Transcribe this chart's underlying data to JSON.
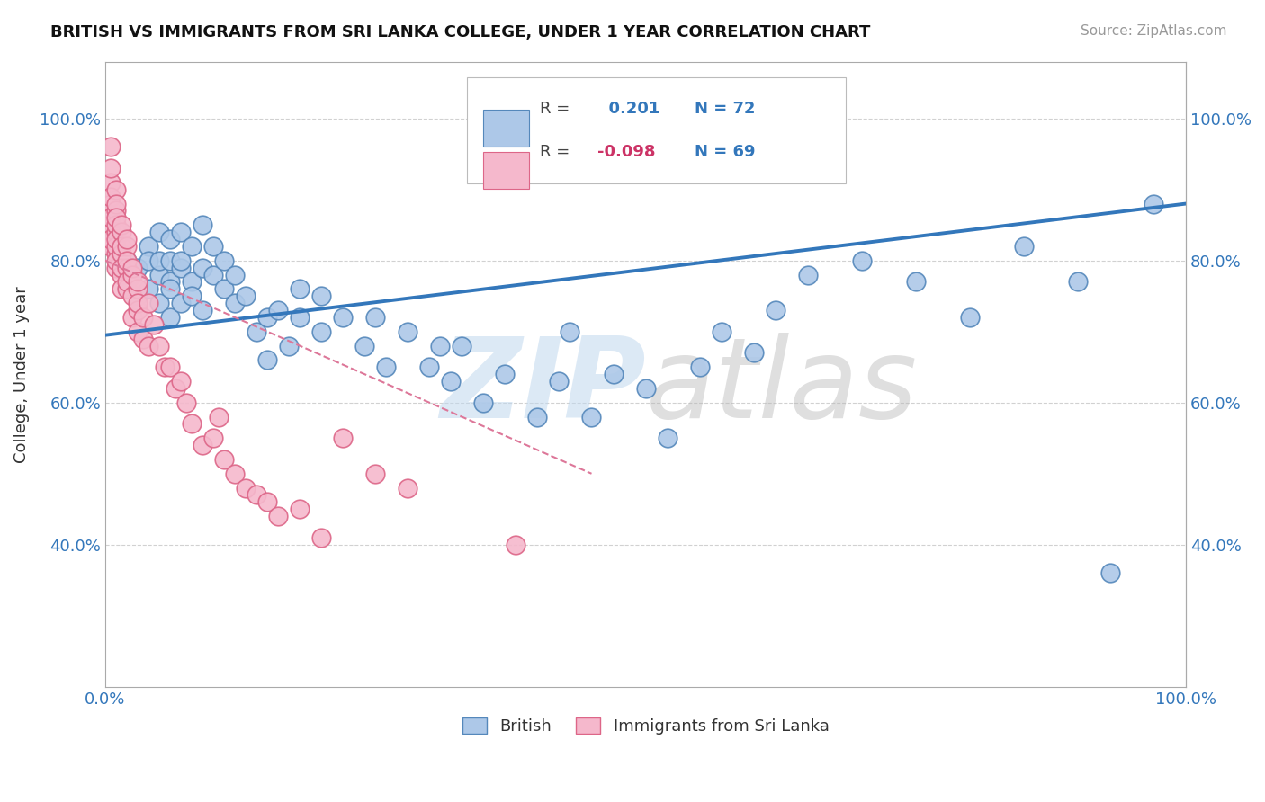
{
  "title": "BRITISH VS IMMIGRANTS FROM SRI LANKA COLLEGE, UNDER 1 YEAR CORRELATION CHART",
  "source": "Source: ZipAtlas.com",
  "ylabel": "College, Under 1 year",
  "xmin": 0.0,
  "xmax": 1.0,
  "ymin": 0.2,
  "ymax": 1.08,
  "yticks": [
    0.4,
    0.6,
    0.8,
    1.0
  ],
  "ytick_labels": [
    "40.0%",
    "60.0%",
    "80.0%",
    "100.0%"
  ],
  "grid_color": "#cccccc",
  "background_color": "#ffffff",
  "british_color": "#adc8e8",
  "british_edge_color": "#5588bb",
  "british_R": 0.201,
  "british_N": 72,
  "srilanka_color": "#f5b8cc",
  "srilanka_edge_color": "#dd6688",
  "srilanka_R": -0.098,
  "srilanka_N": 69,
  "blue_line_color": "#3377bb",
  "pink_line_color": "#dd7799",
  "watermark": "ZIPatlas",
  "watermark_blue": "#c0d8ee",
  "watermark_gray": "#b8b8b8",
  "legend_british_label": "British",
  "legend_srilanka_label": "Immigrants from Sri Lanka",
  "british_x": [
    0.02,
    0.02,
    0.03,
    0.03,
    0.04,
    0.04,
    0.04,
    0.05,
    0.05,
    0.05,
    0.05,
    0.06,
    0.06,
    0.06,
    0.06,
    0.06,
    0.07,
    0.07,
    0.07,
    0.07,
    0.08,
    0.08,
    0.08,
    0.09,
    0.09,
    0.09,
    0.1,
    0.1,
    0.11,
    0.11,
    0.12,
    0.12,
    0.13,
    0.14,
    0.15,
    0.15,
    0.16,
    0.17,
    0.18,
    0.18,
    0.2,
    0.2,
    0.22,
    0.24,
    0.25,
    0.26,
    0.28,
    0.3,
    0.31,
    0.32,
    0.33,
    0.35,
    0.37,
    0.4,
    0.42,
    0.43,
    0.45,
    0.47,
    0.5,
    0.52,
    0.55,
    0.57,
    0.6,
    0.62,
    0.65,
    0.7,
    0.75,
    0.8,
    0.85,
    0.9,
    0.93,
    0.97
  ],
  "british_y": [
    0.76,
    0.8,
    0.75,
    0.79,
    0.82,
    0.76,
    0.8,
    0.78,
    0.74,
    0.8,
    0.84,
    0.77,
    0.8,
    0.83,
    0.76,
    0.72,
    0.79,
    0.74,
    0.8,
    0.84,
    0.77,
    0.82,
    0.75,
    0.79,
    0.73,
    0.85,
    0.78,
    0.82,
    0.76,
    0.8,
    0.74,
    0.78,
    0.75,
    0.7,
    0.66,
    0.72,
    0.73,
    0.68,
    0.72,
    0.76,
    0.7,
    0.75,
    0.72,
    0.68,
    0.72,
    0.65,
    0.7,
    0.65,
    0.68,
    0.63,
    0.68,
    0.6,
    0.64,
    0.58,
    0.63,
    0.7,
    0.58,
    0.64,
    0.62,
    0.55,
    0.65,
    0.7,
    0.67,
    0.73,
    0.78,
    0.8,
    0.77,
    0.72,
    0.82,
    0.77,
    0.36,
    0.88
  ],
  "srilanka_x": [
    0.005,
    0.005,
    0.005,
    0.005,
    0.005,
    0.005,
    0.005,
    0.005,
    0.005,
    0.01,
    0.01,
    0.01,
    0.01,
    0.01,
    0.01,
    0.01,
    0.01,
    0.01,
    0.01,
    0.01,
    0.015,
    0.015,
    0.015,
    0.015,
    0.015,
    0.015,
    0.015,
    0.02,
    0.02,
    0.02,
    0.02,
    0.02,
    0.02,
    0.025,
    0.025,
    0.025,
    0.025,
    0.03,
    0.03,
    0.03,
    0.03,
    0.03,
    0.035,
    0.035,
    0.04,
    0.04,
    0.045,
    0.05,
    0.055,
    0.06,
    0.065,
    0.07,
    0.075,
    0.08,
    0.09,
    0.1,
    0.105,
    0.11,
    0.12,
    0.13,
    0.14,
    0.15,
    0.16,
    0.18,
    0.2,
    0.22,
    0.25,
    0.28,
    0.38
  ],
  "srilanka_y": [
    0.96,
    0.91,
    0.88,
    0.85,
    0.82,
    0.93,
    0.89,
    0.86,
    0.83,
    0.9,
    0.87,
    0.84,
    0.81,
    0.88,
    0.85,
    0.82,
    0.79,
    0.86,
    0.83,
    0.8,
    0.84,
    0.81,
    0.85,
    0.78,
    0.82,
    0.79,
    0.76,
    0.82,
    0.79,
    0.76,
    0.83,
    0.8,
    0.77,
    0.78,
    0.75,
    0.72,
    0.79,
    0.76,
    0.73,
    0.7,
    0.77,
    0.74,
    0.72,
    0.69,
    0.74,
    0.68,
    0.71,
    0.68,
    0.65,
    0.65,
    0.62,
    0.63,
    0.6,
    0.57,
    0.54,
    0.55,
    0.58,
    0.52,
    0.5,
    0.48,
    0.47,
    0.46,
    0.44,
    0.45,
    0.41,
    0.55,
    0.5,
    0.48,
    0.4
  ],
  "blue_line_x0": 0.0,
  "blue_line_y0": 0.695,
  "blue_line_x1": 1.0,
  "blue_line_y1": 0.88,
  "pink_line_x0": 0.0,
  "pink_line_y0": 0.8,
  "pink_line_x1": 0.45,
  "pink_line_y1": 0.5
}
